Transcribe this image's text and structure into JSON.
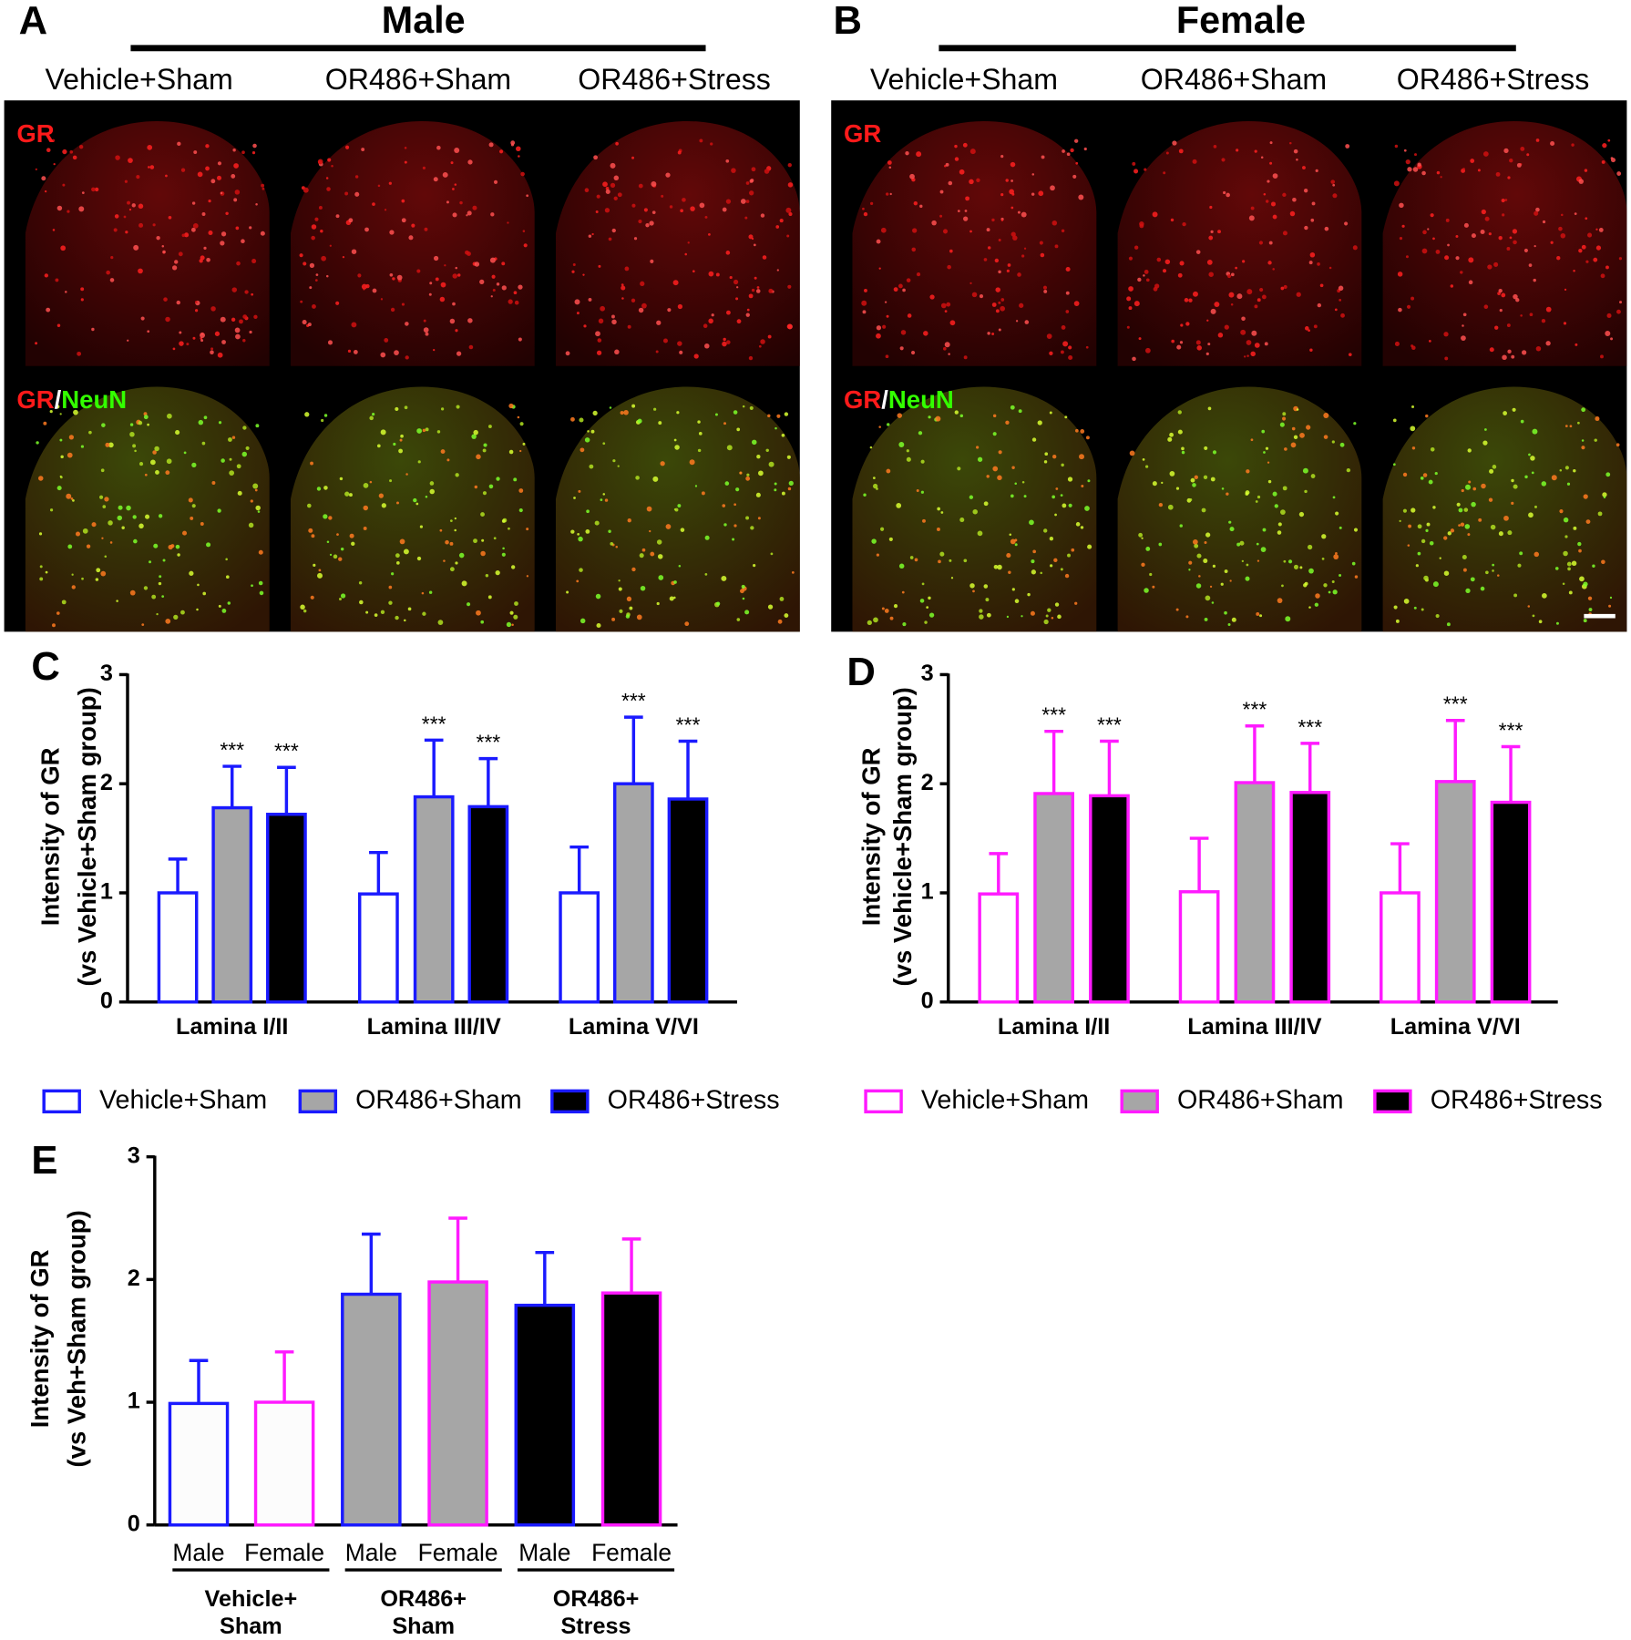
{
  "micrographs": [
    {
      "letter": "A",
      "title": "Male",
      "columns": [
        "Vehicle+Sham",
        "OR486+Sham",
        "OR486+Stress"
      ],
      "rows": [
        [
          "GR"
        ],
        [
          "GR",
          "/",
          "NeuN"
        ]
      ]
    },
    {
      "letter": "B",
      "title": "Female",
      "columns": [
        "Vehicle+Sham",
        "OR486+Sham",
        "OR486+Stress"
      ],
      "rows": [
        [
          "GR"
        ],
        [
          "GR",
          "/",
          "NeuN"
        ]
      ]
    }
  ],
  "chart_data": [
    {
      "type": "bar",
      "letter": "C",
      "ylabel": [
        "Intensity of GR",
        "(vs Vehicle+Sham group)"
      ],
      "categories": [
        "Lamina I/II",
        "Lamina III/IV",
        "Lamina V/VI"
      ],
      "ylim": [
        0,
        3
      ],
      "yticks": [
        0,
        1,
        2,
        3
      ],
      "edgecolor": "#1a1aff",
      "series": [
        {
          "name": "Vehicle+Sham",
          "color": "#ffffff",
          "values": [
            1.0,
            0.99,
            1.0
          ],
          "errors": [
            0.31,
            0.38,
            0.42
          ]
        },
        {
          "name": "OR486+Sham",
          "color": "#a6a6a6",
          "values": [
            1.78,
            1.88,
            2.0
          ],
          "errors": [
            0.38,
            0.52,
            0.61
          ],
          "significance": [
            "***",
            "***",
            "***"
          ]
        },
        {
          "name": "OR486+Stress",
          "color": "#000000",
          "values": [
            1.72,
            1.79,
            1.86
          ],
          "errors": [
            0.43,
            0.44,
            0.53
          ],
          "significance": [
            "***",
            "***",
            "***"
          ]
        }
      ]
    },
    {
      "type": "bar",
      "letter": "D",
      "ylabel": [
        "Intensity of GR",
        "(vs Vehicle+Sham group)"
      ],
      "categories": [
        "Lamina I/II",
        "Lamina III/IV",
        "Lamina V/VI"
      ],
      "ylim": [
        0,
        3
      ],
      "yticks": [
        0,
        1,
        2,
        3
      ],
      "edgecolor": "#ff1aff",
      "series": [
        {
          "name": "Vehicle+Sham",
          "color": "#ffffff",
          "values": [
            0.99,
            1.01,
            1.0
          ],
          "errors": [
            0.37,
            0.49,
            0.45
          ]
        },
        {
          "name": "OR486+Sham",
          "color": "#a6a6a6",
          "values": [
            1.91,
            2.01,
            2.02
          ],
          "errors": [
            0.57,
            0.52,
            0.56
          ],
          "significance": [
            "***",
            "***",
            "***"
          ]
        },
        {
          "name": "OR486+Stress",
          "color": "#000000",
          "values": [
            1.89,
            1.92,
            1.83
          ],
          "errors": [
            0.5,
            0.45,
            0.51
          ],
          "significance": [
            "***",
            "***",
            "***"
          ]
        }
      ]
    },
    {
      "type": "bar",
      "letter": "E",
      "ylabel": [
        "Intensity of GR",
        "(vs Veh+Sham group)"
      ],
      "categories": [
        "Male",
        "Female",
        "Male",
        "Female",
        "Male",
        "Female"
      ],
      "values": [
        0.99,
        1.0,
        1.88,
        1.98,
        1.79,
        1.89
      ],
      "errors": [
        0.35,
        0.41,
        0.49,
        0.52,
        0.43,
        0.44
      ],
      "colors": [
        "#fcfcfc",
        "#fcfcfc",
        "#a6a6a6",
        "#a6a6a6",
        "#000000",
        "#000000"
      ],
      "edgecolors": [
        "#1a1aff",
        "#ff1aff",
        "#1a1aff",
        "#ff1aff",
        "#1a1aff",
        "#ff1aff"
      ],
      "groups": [
        [
          "Vehicle+",
          "Sham"
        ],
        [
          "OR486+",
          "Sham"
        ],
        [
          "OR486+",
          "Stress"
        ]
      ],
      "ylim": [
        0,
        3
      ],
      "yticks": [
        0,
        1,
        2,
        3
      ]
    }
  ]
}
